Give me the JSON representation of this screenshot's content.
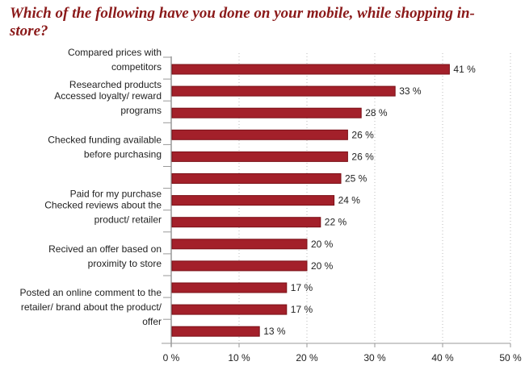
{
  "chart_data": {
    "type": "bar",
    "orientation": "horizontal",
    "title": "Which of the following have you done on your mobile, while shopping in-store?",
    "categories": [
      "Compared prices with competitors",
      "Researched products",
      "Accessed loyalty/ reward programs",
      "",
      "Checked funding available before purchasing",
      "",
      "Paid for my purchase",
      "Checked reviews about the product/ retailer",
      "",
      "Recived an offer based on proximity to store",
      "",
      "Posted an online comment to the retailer/ brand about the product/ offer",
      ""
    ],
    "label_lines": [
      [
        "Compared prices with",
        "competitors"
      ],
      [
        "Researched products"
      ],
      [
        "Accessed loyalty/ reward",
        "programs"
      ],
      [],
      [
        "Checked funding available",
        "before purchasing"
      ],
      [],
      [
        "Paid for my purchase"
      ],
      [
        "Checked reviews about the",
        "product/ retailer"
      ],
      [],
      [
        "Recived an offer based on",
        "proximity to store"
      ],
      [],
      [
        "Posted an online comment to the",
        "retailer/ brand about the product/",
        "offer"
      ],
      []
    ],
    "values": [
      41,
      33,
      28,
      26,
      26,
      25,
      24,
      22,
      20,
      20,
      17,
      17,
      13
    ],
    "value_labels": [
      "41 %",
      "33 %",
      "28 %",
      "26 %",
      "26 %",
      "25 %",
      "24 %",
      "22 %",
      "20 %",
      "20 %",
      "17 %",
      "17 %",
      "13 %"
    ],
    "xlim": [
      0,
      50
    ],
    "xticks": [
      0,
      10,
      20,
      30,
      40,
      50
    ],
    "xtick_labels": [
      "0 %",
      "10 %",
      "20 %",
      "30 %",
      "40 %",
      "50 %"
    ],
    "xlabel": "",
    "ylabel": "",
    "grid": "vertical dotted",
    "bar_color": "#a3202a",
    "bar_edge_color": "#7a0f16",
    "title_color": "#8b1a1a"
  }
}
